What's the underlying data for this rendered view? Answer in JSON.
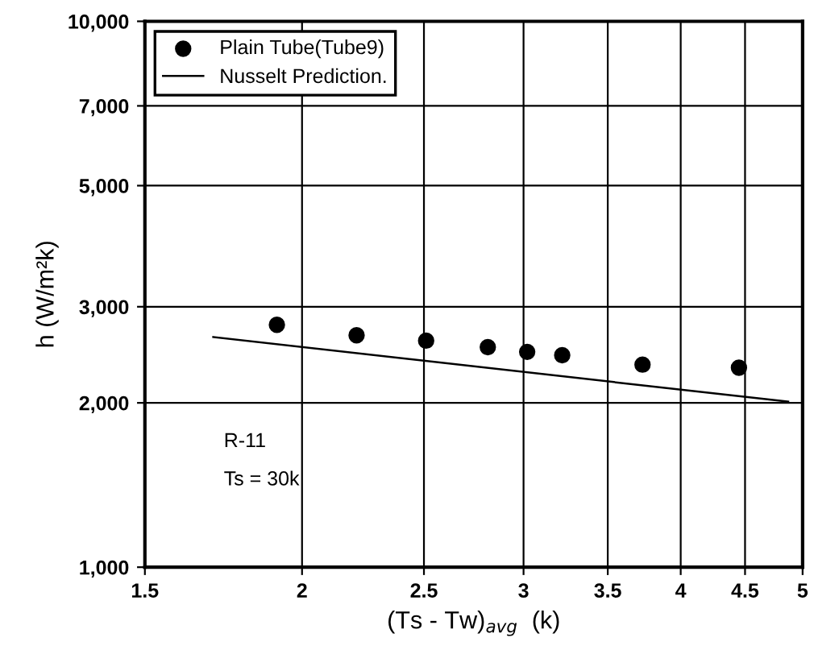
{
  "chart_data": {
    "type": "scatter",
    "xlabel": "(Ts - Tw)$_{avg}$  (k)",
    "ylabel": "h (W/m²k)",
    "log": "xy",
    "xlim": [
      1.5,
      5
    ],
    "xticks": [
      1.5,
      2,
      2.5,
      3,
      3.5,
      4,
      4.5,
      5
    ],
    "ylim": [
      1000,
      10000
    ],
    "yticks": [
      {
        "value": 1000,
        "label": "1,000"
      },
      {
        "value": 2000,
        "label": "2,000"
      },
      {
        "value": 3000,
        "label": "3,000"
      },
      {
        "value": 5000,
        "label": "5,000"
      },
      {
        "value": 7000,
        "label": "7,000"
      },
      {
        "value": 10000,
        "label": "10,000"
      }
    ],
    "grid": true,
    "legend": "top left",
    "series": [
      {
        "name": "Plain Tube(Tube9)",
        "marker": "circle",
        "color": "#000000",
        "x": [
          1.91,
          2.21,
          2.51,
          2.81,
          3.02,
          3.22,
          3.73,
          4.45
        ],
        "values": [
          2780,
          2660,
          2600,
          2530,
          2480,
          2445,
          2350,
          2320
        ]
      },
      {
        "name": "Nusselt Prediction.",
        "type": "line",
        "color": "#000000",
        "x": [
          1.7,
          4.87
        ],
        "values": [
          2640,
          2010
        ]
      }
    ],
    "annotations": [
      "R-11",
      "Ts = 30k"
    ]
  }
}
